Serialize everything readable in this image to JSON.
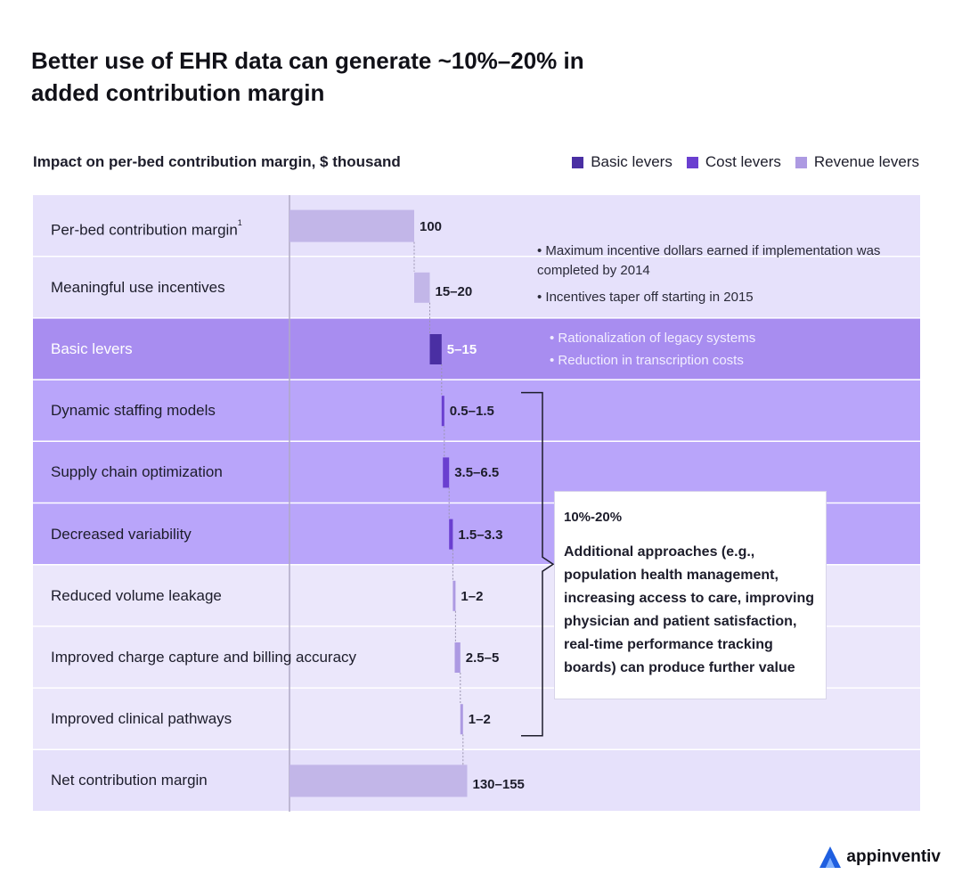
{
  "title_line1": "Better use of EHR data can generate ~10%–20% in",
  "title_line2": "added contribution margin",
  "subtitle": "Impact on per-bed contribution margin, $ thousand",
  "legend": [
    {
      "label": "Basic levers",
      "color": "#4a2fa3"
    },
    {
      "label": "Cost levers",
      "color": "#6a3fd0"
    },
    {
      "label": "Revenue levers",
      "color": "#ad9ae2"
    }
  ],
  "footnote_marker": "1",
  "notes": {
    "incentives": [
      "• Maximum incentive dollars earned if implementation was completed by 2014",
      "• Incentives taper off starting in 2015"
    ],
    "basic": [
      "• Rationalization of legacy systems",
      "• Reduction in transcription costs"
    ]
  },
  "callout": {
    "heading": "10%-20%",
    "body": "Additional approaches (e.g., population health management, increasing access to care, improving physician and patient satisfaction, real-time performance tracking boards) can produce further value"
  },
  "logo": {
    "text": "appinventiv",
    "icon": "appinventiv-logo-icon"
  },
  "chart_data": {
    "type": "bar",
    "subtype": "waterfall",
    "title": "Better use of EHR data can generate ~10%–20% in added contribution margin",
    "ylabel": "Impact on per-bed contribution margin, $ thousand",
    "categories": [
      "Per-bed contribution margin",
      "Meaningful use incentives",
      "Basic levers",
      "Dynamic staffing models",
      "Supply chain optimization",
      "Decreased variability",
      "Reduced volume leakage",
      "Improved charge capture and billing accuracy",
      "Improved clinical pathways",
      "Net contribution margin"
    ],
    "bars": [
      {
        "label": "100",
        "low": 100,
        "high": 100,
        "start": 0,
        "end": 100,
        "group": "total"
      },
      {
        "label": "15–20",
        "low": 15,
        "high": 20,
        "start": 100,
        "end": 112.5,
        "group": "incentive"
      },
      {
        "label": "5–15",
        "low": 5,
        "high": 15,
        "start": 112.5,
        "end": 122,
        "group": "Basic levers"
      },
      {
        "label": "0.5–1.5",
        "low": 0.5,
        "high": 1.5,
        "start": 122,
        "end": 123,
        "group": "Cost levers"
      },
      {
        "label": "3.5–6.5",
        "low": 3.5,
        "high": 6.5,
        "start": 123,
        "end": 128,
        "group": "Cost levers"
      },
      {
        "label": "1.5–3.3",
        "low": 1.5,
        "high": 3.3,
        "start": 128,
        "end": 131,
        "group": "Cost levers"
      },
      {
        "label": "1–2",
        "low": 1,
        "high": 2,
        "start": 131,
        "end": 132.5,
        "group": "Revenue levers"
      },
      {
        "label": "2.5–5",
        "low": 2.5,
        "high": 5,
        "start": 132.5,
        "end": 137,
        "group": "Revenue levers"
      },
      {
        "label": "1–2",
        "low": 1,
        "high": 2,
        "start": 137,
        "end": 138.5,
        "group": "Revenue levers"
      },
      {
        "label": "130–155",
        "low": 130,
        "high": 155,
        "start": 0,
        "end": 142.5,
        "group": "total"
      }
    ],
    "bracket_label": "10%-20%",
    "legend_position": "top-right",
    "grid": false
  }
}
